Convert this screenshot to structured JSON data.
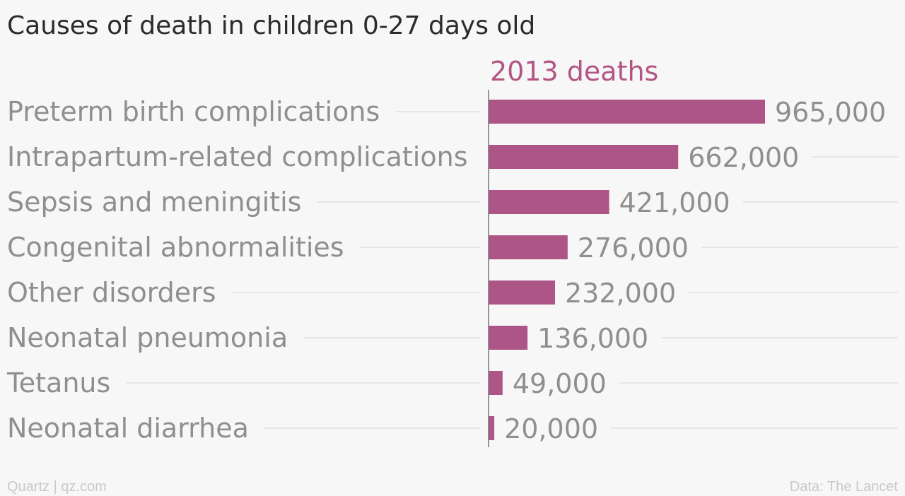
{
  "chart_data": {
    "type": "bar",
    "orientation": "horizontal",
    "title": "Causes of death in children 0-27 days old",
    "series": [
      {
        "name": "2013 deaths",
        "values": [
          965000,
          662000,
          421000,
          276000,
          232000,
          136000,
          49000,
          20000
        ],
        "value_labels": [
          "965,000",
          "662,000",
          "421,000",
          "276,000",
          "232,000",
          "136,000",
          "49,000",
          "20,000"
        ]
      }
    ],
    "categories": [
      "Preterm birth complications",
      "Intrapartum-related complications",
      "Sepsis and meningitis",
      "Congenital abnormalities",
      "Other disorders",
      "Neonatal pneumonia",
      "Tetanus",
      "Neonatal diarrhea"
    ],
    "xlim": [
      0,
      965000
    ],
    "grid": true,
    "colors": {
      "bar": "#ad5587",
      "series_header": "#b25583",
      "label": "#8f8f8f",
      "title": "#2b2b2b",
      "footer": "#c9c9c9",
      "gridline": "#e6e6e6",
      "background": "#f7f7f7"
    }
  },
  "footer": {
    "source_left": "Quartz | qz.com",
    "source_right": "Data: The Lancet"
  }
}
